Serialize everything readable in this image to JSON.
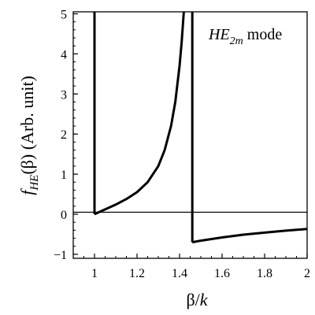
{
  "chart_data": {
    "type": "line",
    "title": "",
    "annotation": {
      "main": "HE",
      "subscript": "2m",
      "suffix": " mode"
    },
    "ylabel": {
      "func": "f",
      "sub": "HE",
      "arg": "(β)",
      "unit": " (Arb. unit)"
    },
    "xlabel": {
      "base": "β/",
      "var": "k"
    },
    "xlim": [
      0.9,
      2.0
    ],
    "ylim": [
      -1.1,
      5.05
    ],
    "x_ticks": [
      1,
      1.2,
      1.4,
      1.6,
      1.8,
      2
    ],
    "x_tick_labels": [
      "1",
      "1.2",
      "1.4",
      "1.6",
      "1.8",
      "2"
    ],
    "y_ticks": [
      -1,
      0,
      1,
      2,
      3,
      4,
      5
    ],
    "y_tick_labels": [
      "−1",
      "0",
      "1",
      "2",
      "3",
      "4",
      "5"
    ],
    "grid": false,
    "reference_line_y": 0.05,
    "series": [
      {
        "x": [
          1.0,
          1.0
        ],
        "y": [
          0.0,
          5.05
        ]
      },
      {
        "x": [
          1.0,
          1.02,
          1.05,
          1.1,
          1.15,
          1.2,
          1.25,
          1.3,
          1.33,
          1.36,
          1.38,
          1.4,
          1.41,
          1.42
        ],
        "y": [
          0.0,
          0.05,
          0.12,
          0.24,
          0.38,
          0.55,
          0.8,
          1.2,
          1.6,
          2.2,
          2.8,
          3.7,
          4.3,
          5.05
        ]
      },
      {
        "x": [
          1.43,
          1.43
        ],
        "y": [
          5.05,
          5.05
        ]
      },
      {
        "x": [
          1.46,
          1.46
        ],
        "y": [
          5.05,
          -0.7
        ]
      },
      {
        "x": [
          1.46,
          1.5,
          1.6,
          1.7,
          1.8,
          1.9,
          2.0
        ],
        "y": [
          -0.7,
          -0.66,
          -0.58,
          -0.51,
          -0.46,
          -0.41,
          -0.37
        ]
      }
    ]
  }
}
